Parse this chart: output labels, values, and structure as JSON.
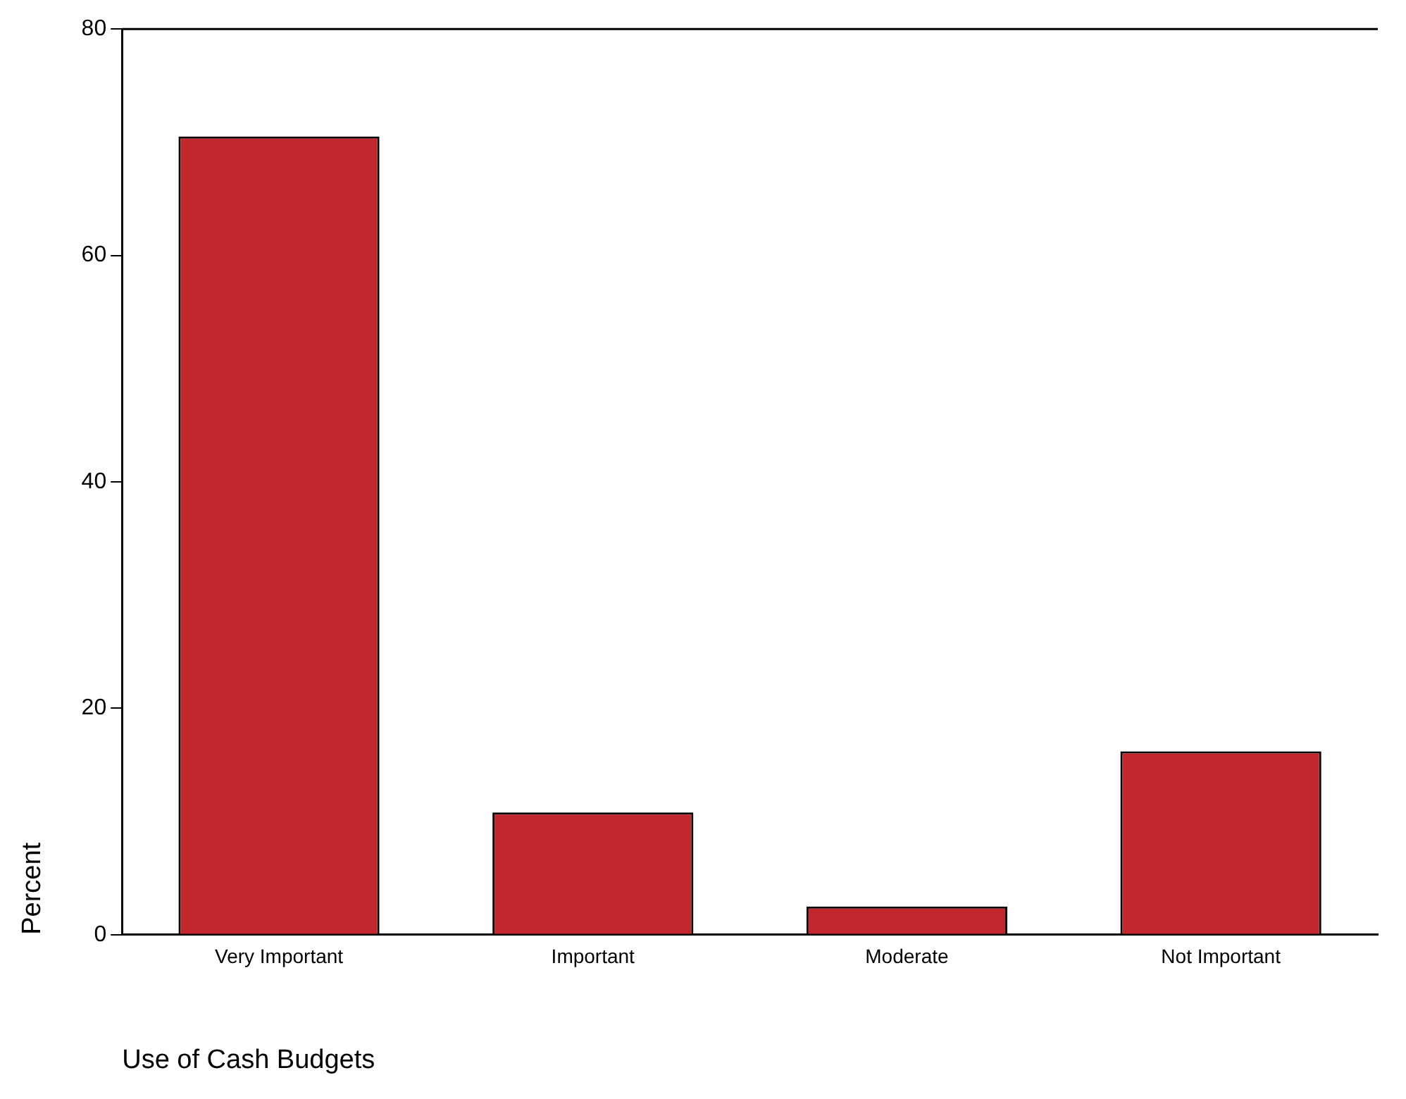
{
  "chart_data": {
    "type": "bar",
    "xlabel": "Use of Cash Budgets",
    "ylabel": "Percent",
    "categories": [
      "Very Important",
      "Important",
      "Moderate",
      "Not Important"
    ],
    "values": [
      70.5,
      10.8,
      2.5,
      16.2
    ],
    "color": "#c1272d",
    "ylim": [
      0,
      80
    ],
    "yticks": [
      0,
      20,
      40,
      60,
      80
    ],
    "grid": false,
    "legend": false
  }
}
